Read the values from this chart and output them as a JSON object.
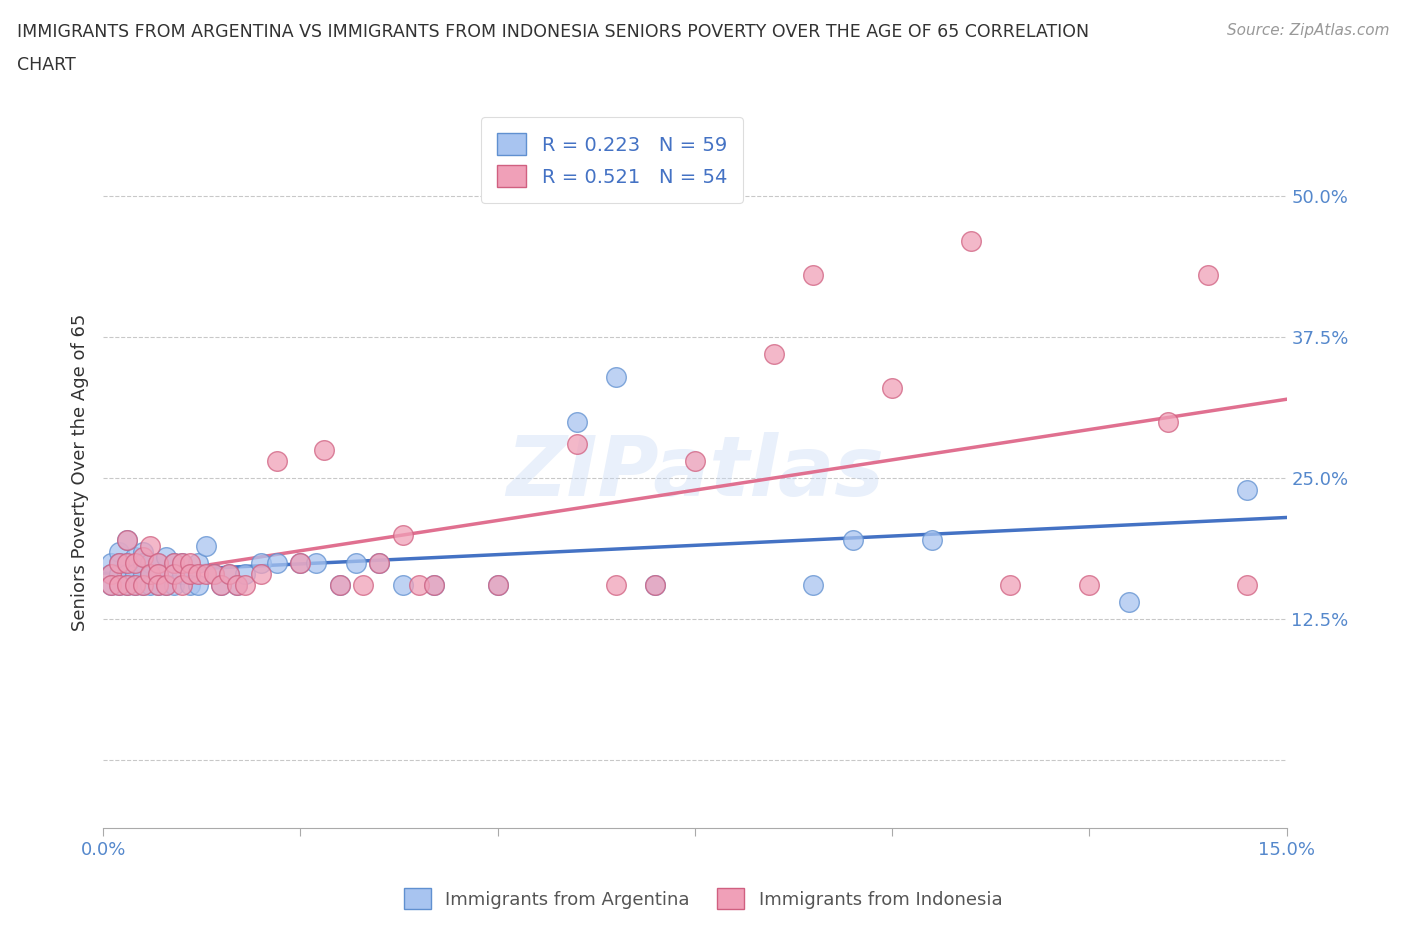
{
  "title_line1": "IMMIGRANTS FROM ARGENTINA VS IMMIGRANTS FROM INDONESIA SENIORS POVERTY OVER THE AGE OF 65 CORRELATION",
  "title_line2": "CHART",
  "source": "Source: ZipAtlas.com",
  "ylabel": "Seniors Poverty Over the Age of 65",
  "xlim": [
    0.0,
    0.15
  ],
  "ylim": [
    -0.06,
    0.57
  ],
  "yticks": [
    0.0,
    0.125,
    0.25,
    0.375,
    0.5
  ],
  "ytick_labels": [
    "",
    "12.5%",
    "25.0%",
    "37.5%",
    "50.0%"
  ],
  "xticks": [
    0.0,
    0.025,
    0.05,
    0.075,
    0.1,
    0.125,
    0.15
  ],
  "xtick_labels": [
    "0.0%",
    "",
    "",
    "",
    "",
    "",
    "15.0%"
  ],
  "argentina_color": "#a8c4f0",
  "indonesia_color": "#f0a0b8",
  "argentina_edge_color": "#6090d0",
  "indonesia_edge_color": "#d06080",
  "argentina_R": 0.223,
  "argentina_N": 59,
  "indonesia_R": 0.521,
  "indonesia_N": 54,
  "argentina_line_color": "#4472c4",
  "indonesia_line_color": "#e07090",
  "watermark": "ZIPatlas",
  "argentina_x": [
    0.001,
    0.001,
    0.001,
    0.002,
    0.002,
    0.002,
    0.002,
    0.003,
    0.003,
    0.003,
    0.003,
    0.004,
    0.004,
    0.004,
    0.005,
    0.005,
    0.005,
    0.005,
    0.006,
    0.006,
    0.006,
    0.007,
    0.007,
    0.007,
    0.008,
    0.008,
    0.008,
    0.009,
    0.009,
    0.01,
    0.01,
    0.011,
    0.011,
    0.012,
    0.012,
    0.013,
    0.014,
    0.015,
    0.016,
    0.017,
    0.018,
    0.02,
    0.022,
    0.025,
    0.027,
    0.03,
    0.032,
    0.035,
    0.038,
    0.042,
    0.05,
    0.06,
    0.065,
    0.07,
    0.09,
    0.095,
    0.105,
    0.13,
    0.145
  ],
  "argentina_y": [
    0.175,
    0.165,
    0.155,
    0.185,
    0.175,
    0.165,
    0.155,
    0.195,
    0.175,
    0.165,
    0.155,
    0.18,
    0.165,
    0.155,
    0.185,
    0.175,
    0.165,
    0.155,
    0.175,
    0.165,
    0.155,
    0.175,
    0.165,
    0.155,
    0.18,
    0.165,
    0.155,
    0.175,
    0.155,
    0.175,
    0.165,
    0.165,
    0.155,
    0.175,
    0.155,
    0.19,
    0.165,
    0.155,
    0.165,
    0.155,
    0.165,
    0.175,
    0.175,
    0.175,
    0.175,
    0.155,
    0.175,
    0.175,
    0.155,
    0.155,
    0.155,
    0.3,
    0.34,
    0.155,
    0.155,
    0.195,
    0.195,
    0.14,
    0.24
  ],
  "indonesia_x": [
    0.001,
    0.001,
    0.002,
    0.002,
    0.003,
    0.003,
    0.003,
    0.004,
    0.004,
    0.005,
    0.005,
    0.006,
    0.006,
    0.007,
    0.007,
    0.007,
    0.008,
    0.009,
    0.009,
    0.01,
    0.01,
    0.011,
    0.011,
    0.012,
    0.013,
    0.014,
    0.015,
    0.016,
    0.017,
    0.018,
    0.02,
    0.022,
    0.025,
    0.028,
    0.03,
    0.033,
    0.035,
    0.038,
    0.04,
    0.042,
    0.05,
    0.06,
    0.065,
    0.07,
    0.075,
    0.085,
    0.09,
    0.1,
    0.11,
    0.115,
    0.125,
    0.135,
    0.14,
    0.145
  ],
  "indonesia_y": [
    0.165,
    0.155,
    0.175,
    0.155,
    0.195,
    0.175,
    0.155,
    0.175,
    0.155,
    0.18,
    0.155,
    0.19,
    0.165,
    0.175,
    0.165,
    0.155,
    0.155,
    0.175,
    0.165,
    0.175,
    0.155,
    0.175,
    0.165,
    0.165,
    0.165,
    0.165,
    0.155,
    0.165,
    0.155,
    0.155,
    0.165,
    0.265,
    0.175,
    0.275,
    0.155,
    0.155,
    0.175,
    0.2,
    0.155,
    0.155,
    0.155,
    0.28,
    0.155,
    0.155,
    0.265,
    0.36,
    0.43,
    0.33,
    0.46,
    0.155,
    0.155,
    0.3,
    0.43,
    0.155
  ]
}
